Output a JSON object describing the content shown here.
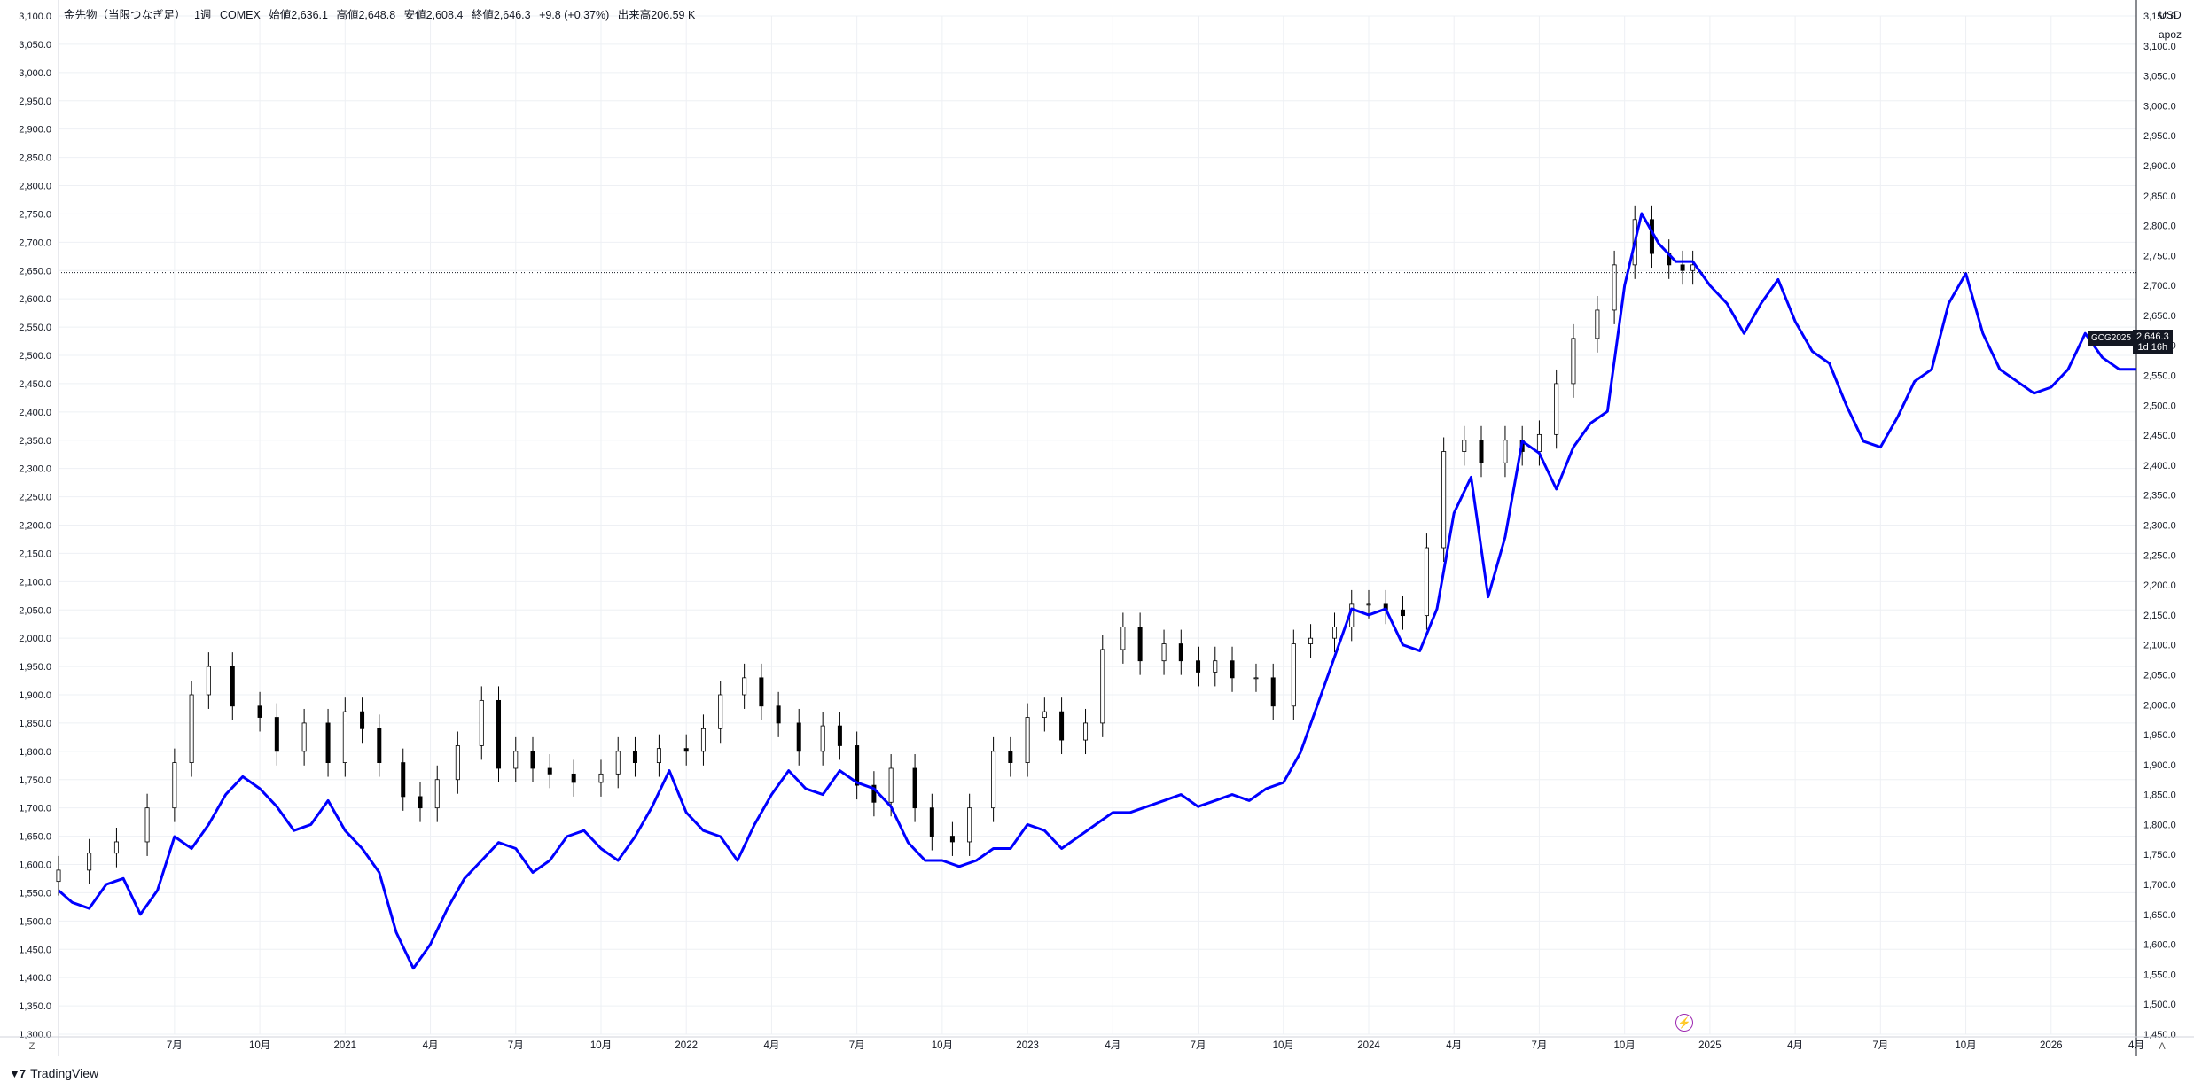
{
  "header": {
    "symbol_desc": "金先物（当限つなぎ足）",
    "interval": "1週",
    "exchange": "COMEX",
    "open": "始値2,636.1",
    "high": "高値2,648.8",
    "low": "安値2,608.4",
    "close": "終値2,646.3",
    "change": "+9.8 (+0.37%)",
    "volume": "出来高206.59 K"
  },
  "right_header": {
    "currency": "USD",
    "overlay_name": "apoz"
  },
  "price_marker": {
    "ticker": "GCG2025",
    "value": "2,646.3",
    "countdown": "1d 16h"
  },
  "bottom": {
    "brand": "TradingView",
    "left_btn": "Z",
    "right_btn": "A",
    "bolt_icon": "lightning-icon"
  },
  "chart_data": {
    "type": "line",
    "left_axis": {
      "ticks": [
        "3,100.0",
        "3,050.0",
        "3,000.0",
        "2,950.0",
        "2,900.0",
        "2,850.0",
        "2,800.0",
        "2,750.0",
        "2,700.0",
        "2,650.0",
        "2,600.0",
        "2,550.0",
        "2,500.0",
        "2,450.0",
        "2,400.0",
        "2,350.0",
        "2,300.0",
        "2,250.0",
        "2,200.0",
        "2,150.0",
        "2,100.0",
        "2,050.0",
        "2,000.0",
        "1,950.0",
        "1,900.0",
        "1,850.0",
        "1,800.0",
        "1,750.0",
        "1,700.0",
        "1,650.0",
        "1,600.0",
        "1,550.0",
        "1,500.0",
        "1,450.0",
        "1,400.0",
        "1,350.0",
        "1,300.0"
      ],
      "range": [
        1300,
        3100
      ]
    },
    "right_axis": {
      "ticks": [
        "3,150.0",
        "3,100.0",
        "3,050.0",
        "3,000.0",
        "2,950.0",
        "2,900.0",
        "2,850.0",
        "2,800.0",
        "2,750.0",
        "2,700.0",
        "2,650.0",
        "2,600.0",
        "2,550.0",
        "2,500.0",
        "2,450.0",
        "2,400.0",
        "2,350.0",
        "2,300.0",
        "2,250.0",
        "2,200.0",
        "2,150.0",
        "2,100.0",
        "2,050.0",
        "2,000.0",
        "1,950.0",
        "1,900.0",
        "1,850.0",
        "1,800.0",
        "1,750.0",
        "1,700.0",
        "1,650.0",
        "1,600.0",
        "1,550.0",
        "1,500.0",
        "1,450.0"
      ],
      "range": [
        1450,
        3150
      ]
    },
    "x_axis": {
      "ticks": [
        "7月",
        "10月",
        "2021",
        "4月",
        "7月",
        "10月",
        "2022",
        "4月",
        "7月",
        "10月",
        "2023",
        "4月",
        "7月",
        "10月",
        "2024",
        "4月",
        "7月",
        "10月",
        "2025",
        "4月",
        "7月",
        "10月",
        "2026",
        "4月"
      ],
      "tick_dates": [
        2020.5,
        2020.75,
        2021,
        2021.25,
        2021.5,
        2021.75,
        2022,
        2022.25,
        2022.5,
        2022.75,
        2023,
        2023.25,
        2023.5,
        2023.75,
        2024,
        2024.25,
        2024.5,
        2024.75,
        2025,
        2025.25,
        2025.5,
        2025.75,
        2026,
        2026.25
      ],
      "range": [
        2020.16,
        2026.25
      ]
    },
    "grid": true,
    "series": [
      {
        "axis": "left",
        "style": "candlestick",
        "color_up": "#ffffff",
        "color_down": "#000000",
        "outline": "#000000",
        "points": [
          [
            2020.16,
            1590
          ],
          [
            2020.25,
            1620
          ],
          [
            2020.33,
            1640
          ],
          [
            2020.42,
            1700
          ],
          [
            2020.5,
            1780
          ],
          [
            2020.55,
            1900
          ],
          [
            2020.6,
            1950
          ],
          [
            2020.67,
            1880
          ],
          [
            2020.75,
            1860
          ],
          [
            2020.8,
            1800
          ],
          [
            2020.88,
            1850
          ],
          [
            2020.95,
            1780
          ],
          [
            2021.0,
            1870
          ],
          [
            2021.05,
            1840
          ],
          [
            2021.1,
            1780
          ],
          [
            2021.17,
            1720
          ],
          [
            2021.22,
            1700
          ],
          [
            2021.27,
            1750
          ],
          [
            2021.33,
            1810
          ],
          [
            2021.4,
            1890
          ],
          [
            2021.45,
            1770
          ],
          [
            2021.5,
            1800
          ],
          [
            2021.55,
            1770
          ],
          [
            2021.6,
            1760
          ],
          [
            2021.67,
            1745
          ],
          [
            2021.75,
            1760
          ],
          [
            2021.8,
            1800
          ],
          [
            2021.85,
            1780
          ],
          [
            2021.92,
            1805
          ],
          [
            2022.0,
            1800
          ],
          [
            2022.05,
            1840
          ],
          [
            2022.1,
            1900
          ],
          [
            2022.17,
            1930
          ],
          [
            2022.22,
            1880
          ],
          [
            2022.27,
            1850
          ],
          [
            2022.33,
            1800
          ],
          [
            2022.4,
            1845
          ],
          [
            2022.45,
            1810
          ],
          [
            2022.5,
            1740
          ],
          [
            2022.55,
            1710
          ],
          [
            2022.6,
            1770
          ],
          [
            2022.67,
            1700
          ],
          [
            2022.72,
            1650
          ],
          [
            2022.78,
            1640
          ],
          [
            2022.83,
            1700
          ],
          [
            2022.9,
            1800
          ],
          [
            2022.95,
            1780
          ],
          [
            2023.0,
            1860
          ],
          [
            2023.05,
            1870
          ],
          [
            2023.1,
            1820
          ],
          [
            2023.17,
            1850
          ],
          [
            2023.22,
            1980
          ],
          [
            2023.28,
            2020
          ],
          [
            2023.33,
            1960
          ],
          [
            2023.4,
            1990
          ],
          [
            2023.45,
            1960
          ],
          [
            2023.5,
            1940
          ],
          [
            2023.55,
            1960
          ],
          [
            2023.6,
            1930
          ],
          [
            2023.67,
            1930
          ],
          [
            2023.72,
            1880
          ],
          [
            2023.78,
            1990
          ],
          [
            2023.83,
            2000
          ],
          [
            2023.9,
            2020
          ],
          [
            2023.95,
            2060
          ],
          [
            2024.0,
            2060
          ],
          [
            2024.05,
            2050
          ],
          [
            2024.1,
            2040
          ],
          [
            2024.17,
            2160
          ],
          [
            2024.22,
            2330
          ],
          [
            2024.28,
            2350
          ],
          [
            2024.33,
            2310
          ],
          [
            2024.4,
            2350
          ],
          [
            2024.45,
            2330
          ],
          [
            2024.5,
            2360
          ],
          [
            2024.55,
            2450
          ],
          [
            2024.6,
            2530
          ],
          [
            2024.67,
            2580
          ],
          [
            2024.72,
            2660
          ],
          [
            2024.78,
            2740
          ],
          [
            2024.83,
            2680
          ],
          [
            2024.88,
            2660
          ],
          [
            2024.92,
            2650
          ],
          [
            2024.95,
            2660
          ]
        ]
      },
      {
        "name": "apoz",
        "axis": "right",
        "color": "#0000ff",
        "points": [
          [
            2020.16,
            1690
          ],
          [
            2020.2,
            1670
          ],
          [
            2020.25,
            1660
          ],
          [
            2020.3,
            1700
          ],
          [
            2020.35,
            1710
          ],
          [
            2020.4,
            1650
          ],
          [
            2020.45,
            1690
          ],
          [
            2020.5,
            1780
          ],
          [
            2020.55,
            1760
          ],
          [
            2020.6,
            1800
          ],
          [
            2020.65,
            1850
          ],
          [
            2020.7,
            1880
          ],
          [
            2020.75,
            1860
          ],
          [
            2020.8,
            1830
          ],
          [
            2020.85,
            1790
          ],
          [
            2020.9,
            1800
          ],
          [
            2020.95,
            1840
          ],
          [
            2021.0,
            1790
          ],
          [
            2021.05,
            1760
          ],
          [
            2021.1,
            1720
          ],
          [
            2021.15,
            1620
          ],
          [
            2021.2,
            1560
          ],
          [
            2021.25,
            1600
          ],
          [
            2021.3,
            1660
          ],
          [
            2021.35,
            1710
          ],
          [
            2021.4,
            1740
          ],
          [
            2021.45,
            1770
          ],
          [
            2021.5,
            1760
          ],
          [
            2021.55,
            1720
          ],
          [
            2021.6,
            1740
          ],
          [
            2021.65,
            1780
          ],
          [
            2021.7,
            1790
          ],
          [
            2021.75,
            1760
          ],
          [
            2021.8,
            1740
          ],
          [
            2021.85,
            1780
          ],
          [
            2021.9,
            1830
          ],
          [
            2021.95,
            1890
          ],
          [
            2022.0,
            1820
          ],
          [
            2022.05,
            1790
          ],
          [
            2022.1,
            1780
          ],
          [
            2022.15,
            1740
          ],
          [
            2022.2,
            1800
          ],
          [
            2022.25,
            1850
          ],
          [
            2022.3,
            1890
          ],
          [
            2022.35,
            1860
          ],
          [
            2022.4,
            1850
          ],
          [
            2022.45,
            1890
          ],
          [
            2022.5,
            1870
          ],
          [
            2022.55,
            1860
          ],
          [
            2022.6,
            1830
          ],
          [
            2022.65,
            1770
          ],
          [
            2022.7,
            1740
          ],
          [
            2022.75,
            1740
          ],
          [
            2022.8,
            1730
          ],
          [
            2022.85,
            1740
          ],
          [
            2022.9,
            1760
          ],
          [
            2022.95,
            1760
          ],
          [
            2023.0,
            1800
          ],
          [
            2023.05,
            1790
          ],
          [
            2023.1,
            1760
          ],
          [
            2023.15,
            1780
          ],
          [
            2023.2,
            1800
          ],
          [
            2023.25,
            1820
          ],
          [
            2023.3,
            1820
          ],
          [
            2023.35,
            1830
          ],
          [
            2023.4,
            1840
          ],
          [
            2023.45,
            1850
          ],
          [
            2023.5,
            1830
          ],
          [
            2023.55,
            1840
          ],
          [
            2023.6,
            1850
          ],
          [
            2023.65,
            1840
          ],
          [
            2023.7,
            1860
          ],
          [
            2023.75,
            1870
          ],
          [
            2023.8,
            1920
          ],
          [
            2023.85,
            2000
          ],
          [
            2023.9,
            2080
          ],
          [
            2023.95,
            2160
          ],
          [
            2024.0,
            2150
          ],
          [
            2024.05,
            2160
          ],
          [
            2024.1,
            2100
          ],
          [
            2024.15,
            2090
          ],
          [
            2024.2,
            2160
          ],
          [
            2024.25,
            2320
          ],
          [
            2024.3,
            2380
          ],
          [
            2024.35,
            2180
          ],
          [
            2024.4,
            2280
          ],
          [
            2024.45,
            2440
          ],
          [
            2024.5,
            2420
          ],
          [
            2024.55,
            2360
          ],
          [
            2024.6,
            2430
          ],
          [
            2024.65,
            2470
          ],
          [
            2024.7,
            2490
          ],
          [
            2024.75,
            2700
          ],
          [
            2024.8,
            2820
          ],
          [
            2024.85,
            2770
          ],
          [
            2024.9,
            2740
          ],
          [
            2024.95,
            2740
          ],
          [
            2025.0,
            2700
          ],
          [
            2025.05,
            2670
          ],
          [
            2025.1,
            2620
          ],
          [
            2025.15,
            2670
          ],
          [
            2025.2,
            2710
          ],
          [
            2025.25,
            2640
          ],
          [
            2025.3,
            2590
          ],
          [
            2025.35,
            2570
          ],
          [
            2025.4,
            2500
          ],
          [
            2025.45,
            2440
          ],
          [
            2025.5,
            2430
          ],
          [
            2025.55,
            2480
          ],
          [
            2025.6,
            2540
          ],
          [
            2025.65,
            2560
          ],
          [
            2025.7,
            2670
          ],
          [
            2025.75,
            2720
          ],
          [
            2025.8,
            2620
          ],
          [
            2025.85,
            2560
          ],
          [
            2025.9,
            2540
          ],
          [
            2025.95,
            2520
          ],
          [
            2026.0,
            2530
          ],
          [
            2026.05,
            2560
          ],
          [
            2026.1,
            2620
          ],
          [
            2026.15,
            2580
          ],
          [
            2026.2,
            2560
          ],
          [
            2026.25,
            2560
          ]
        ]
      }
    ]
  }
}
